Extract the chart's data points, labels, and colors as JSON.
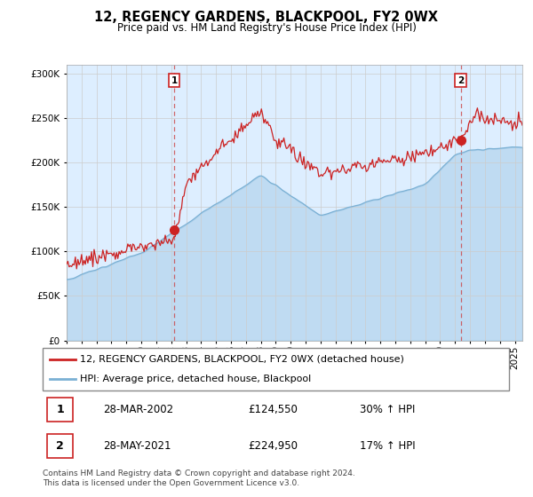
{
  "title": "12, REGENCY GARDENS, BLACKPOOL, FY2 0WX",
  "subtitle": "Price paid vs. HM Land Registry's House Price Index (HPI)",
  "legend_line1": "12, REGENCY GARDENS, BLACKPOOL, FY2 0WX (detached house)",
  "legend_line2": "HPI: Average price, detached house, Blackpool",
  "transaction1_date": "28-MAR-2002",
  "transaction1_price": "£124,550",
  "transaction1_hpi": "30% ↑ HPI",
  "transaction2_date": "28-MAY-2021",
  "transaction2_price": "£224,950",
  "transaction2_hpi": "17% ↑ HPI",
  "footer": "Contains HM Land Registry data © Crown copyright and database right 2024.\nThis data is licensed under the Open Government Licence v3.0.",
  "price_color": "#cc2222",
  "hpi_color": "#7ab0d4",
  "dashed_line_color": "#cc4444",
  "fill_color": "#ddeeff",
  "ylim": [
    0,
    310000
  ],
  "yticks": [
    0,
    50000,
    100000,
    150000,
    200000,
    250000,
    300000
  ],
  "t1_year": 2002.21,
  "t1_price": 124550,
  "t2_year": 2021.38,
  "t2_price": 224950,
  "background_color": "#ffffff"
}
